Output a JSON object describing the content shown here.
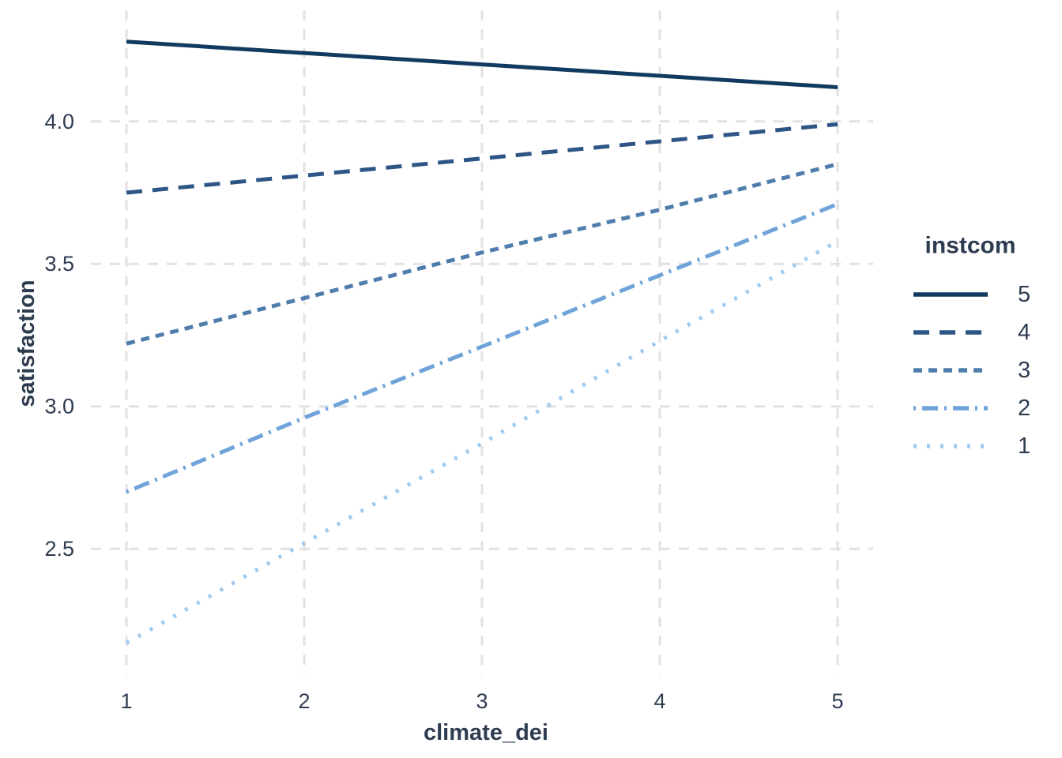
{
  "chart_data": {
    "type": "line",
    "title": "",
    "xlabel": "climate_dei",
    "ylabel": "satisfaction",
    "x": [
      1,
      2,
      3,
      4,
      5
    ],
    "xlim": [
      0.8,
      5.2
    ],
    "ylim": [
      2.06,
      4.39
    ],
    "x_ticks": [
      1,
      2,
      3,
      4,
      5
    ],
    "y_ticks": [
      2.5,
      3.0,
      3.5,
      4.0
    ],
    "grid": "dashed-major-only",
    "legend": {
      "title": "instcom",
      "position": "right",
      "entries": [
        "5",
        "4",
        "3",
        "2",
        "1"
      ]
    },
    "series": [
      {
        "name": "5",
        "linetype": "solid",
        "color": "#113a60",
        "values": [
          4.28,
          4.24,
          4.2,
          4.16,
          4.12
        ]
      },
      {
        "name": "4",
        "linetype": "dashed",
        "color": "#2d5585",
        "values": [
          3.75,
          3.81,
          3.87,
          3.93,
          3.99
        ]
      },
      {
        "name": "3",
        "linetype": "shortdash",
        "color": "#4f7eac",
        "values": [
          3.22,
          3.38,
          3.54,
          3.69,
          3.85
        ]
      },
      {
        "name": "2",
        "linetype": "dotdash",
        "color": "#6fa3d9",
        "values": [
          2.7,
          2.96,
          3.21,
          3.46,
          3.71
        ]
      },
      {
        "name": "1",
        "linetype": "dotted",
        "color": "#a0cbf1",
        "values": [
          2.17,
          2.52,
          2.87,
          3.23,
          3.58
        ]
      }
    ]
  },
  "style": {
    "text_color": "#2e3c50",
    "grid_color": "#e2e2e2",
    "background": "#ffffff"
  }
}
